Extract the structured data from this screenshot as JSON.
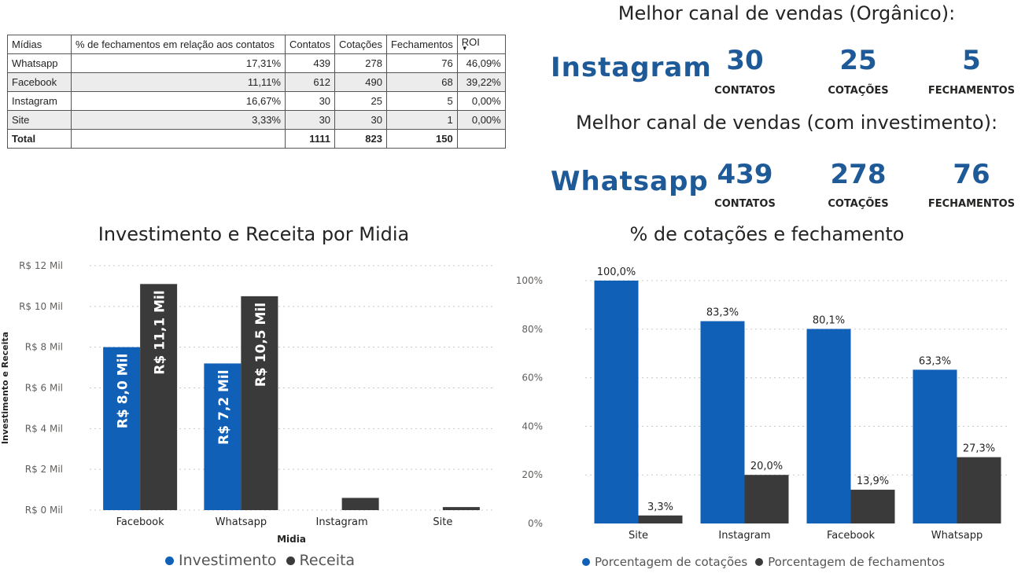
{
  "table": {
    "headers": [
      "Mídias",
      "% de fechamentos em relação aos contatos",
      "Contatos",
      "Cotações",
      "Fechamentos",
      "ROI"
    ],
    "rows": [
      [
        "Whatsapp",
        "17,31%",
        "439",
        "278",
        "76",
        "46,09%"
      ],
      [
        "Facebook",
        "11,11%",
        "612",
        "490",
        "68",
        "39,22%"
      ],
      [
        "Instagram",
        "16,67%",
        "30",
        "25",
        "5",
        "0,00%"
      ],
      [
        "Site",
        "3,33%",
        "30",
        "30",
        "1",
        "0,00%"
      ]
    ],
    "total": [
      "Total",
      "",
      "1111",
      "823",
      "150",
      ""
    ]
  },
  "kpi_organic": {
    "title": "Melhor canal de vendas (Orgânico):",
    "channel": "Instagram",
    "contacts_value": "30",
    "contacts_label": "CONTATOS",
    "quotes_value": "25",
    "quotes_label": "COTAÇÕES",
    "closings_value": "5",
    "closings_label": "FECHAMENTOS"
  },
  "kpi_investment": {
    "title": "Melhor canal de vendas (com investimento):",
    "channel": "Whatsapp",
    "contacts_value": "439",
    "contacts_label": "CONTATOS",
    "quotes_value": "278",
    "quotes_label": "COTAÇÕES",
    "closings_value": "76",
    "closings_label": "FECHAMENTOS"
  },
  "colors": {
    "blue": "#1060b8",
    "dark": "#3a3a3a",
    "kpi": "#1e5a98",
    "grid": "#c8c8c8"
  },
  "chart_data": [
    {
      "type": "bar",
      "title": "Investimento e Receita por Midia",
      "xlabel": "Midia",
      "ylabel": "Investimento e Receita",
      "categories": [
        "Facebook",
        "Whatsapp",
        "Instagram",
        "Site"
      ],
      "ylim": [
        0,
        12000
      ],
      "yticks": [
        0,
        2000,
        4000,
        6000,
        8000,
        10000,
        12000
      ],
      "ytick_labels": [
        "R$ 0 Mil",
        "R$ 2 Mil",
        "R$ 4 Mil",
        "R$ 6 Mil",
        "R$ 8 Mil",
        "R$ 10 Mil",
        "R$ 12 Mil"
      ],
      "series": [
        {
          "name": "Investimento",
          "color": "#1060b8",
          "values": [
            8000,
            7200,
            0,
            0
          ],
          "labels": [
            "R$ 8,0 Mil",
            "R$ 7,2 Mil",
            "",
            ""
          ]
        },
        {
          "name": "Receita",
          "color": "#3a3a3a",
          "values": [
            11100,
            10500,
            600,
            150
          ],
          "labels": [
            "R$ 11,1 Mil",
            "R$ 10,5 Mil",
            "",
            ""
          ]
        }
      ],
      "grid": true,
      "legend": "bottom"
    },
    {
      "type": "bar",
      "title": "% de cotações e fechamento",
      "xlabel": "",
      "ylabel": "",
      "categories": [
        "Site",
        "Instagram",
        "Facebook",
        "Whatsapp"
      ],
      "ylim": [
        0,
        100
      ],
      "yticks": [
        0,
        20,
        40,
        60,
        80,
        100
      ],
      "ytick_labels": [
        "0%",
        "20%",
        "40%",
        "60%",
        "80%",
        "100%"
      ],
      "series": [
        {
          "name": "Porcentagem de cotações",
          "color": "#1060b8",
          "values": [
            100.0,
            83.3,
            80.1,
            63.3
          ],
          "labels": [
            "100,0%",
            "83,3%",
            "80,1%",
            "63,3%"
          ]
        },
        {
          "name": "Porcentagem de fechamentos",
          "color": "#3a3a3a",
          "values": [
            3.3,
            20.0,
            13.9,
            27.3
          ],
          "labels": [
            "3,3%",
            "20,0%",
            "13,9%",
            "27,3%"
          ]
        }
      ],
      "grid": true,
      "legend": "bottom"
    }
  ]
}
